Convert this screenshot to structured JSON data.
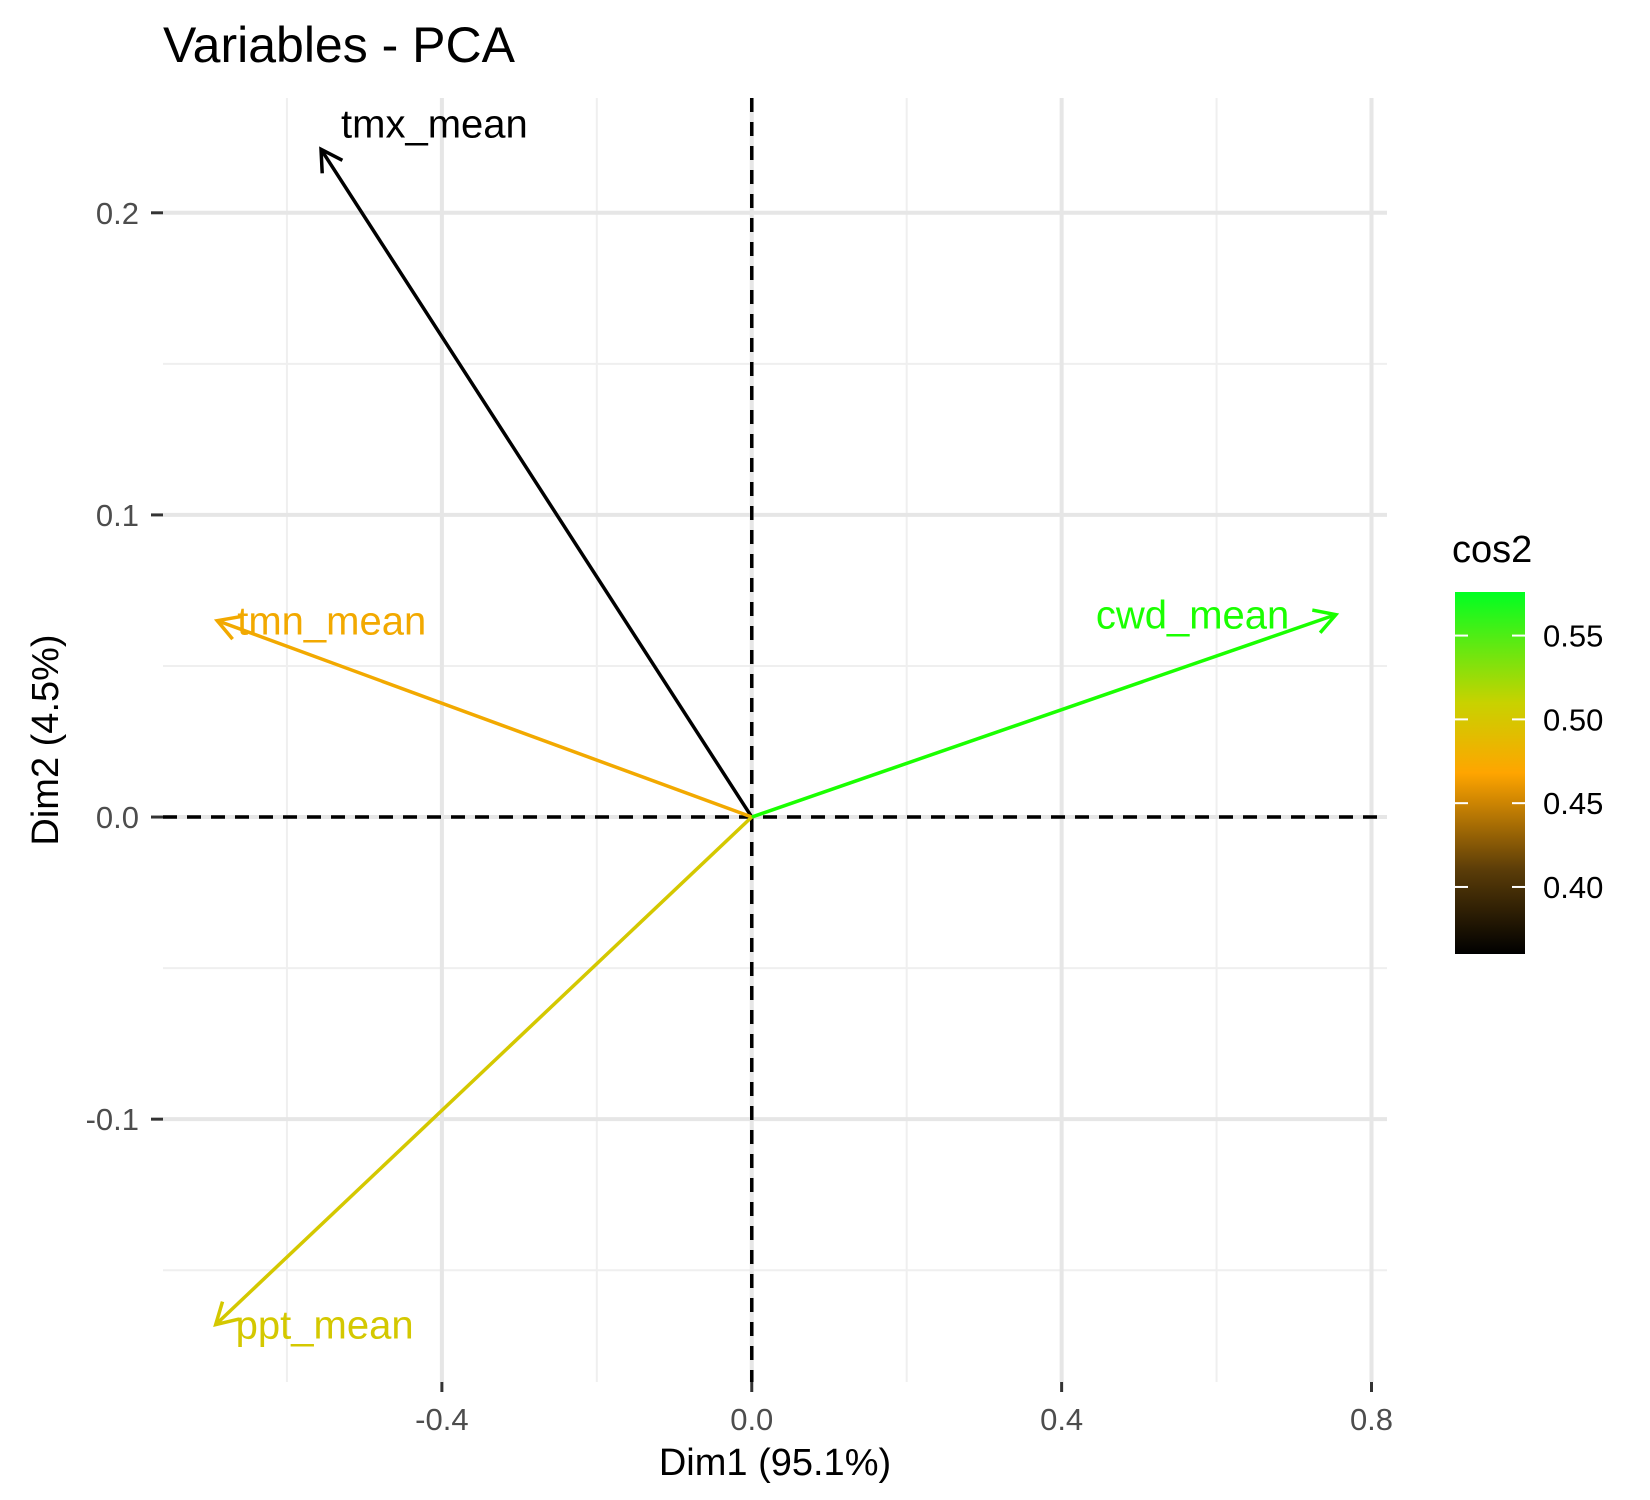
{
  "chart_data": {
    "type": "scatter",
    "subtype": "pca-variable-correlation-arrows",
    "title": "Variables - PCA",
    "xlabel": "Dim1 (95.1%)",
    "ylabel": "Dim2 (4.5%)",
    "xlim": [
      -0.76,
      0.82
    ],
    "ylim": [
      -0.187,
      0.238
    ],
    "x_ticks": [
      -0.4,
      0.0,
      0.4,
      0.8
    ],
    "x_tick_labels": [
      "-0.4",
      "0.0",
      "0.4",
      "0.8"
    ],
    "y_ticks": [
      -0.1,
      0.0,
      0.1,
      0.2
    ],
    "y_tick_labels": [
      "-0.1",
      "0.0",
      "0.1",
      "0.2"
    ],
    "x_minor": [
      -0.6,
      -0.2,
      0.2,
      0.6
    ],
    "y_minor": [
      -0.15,
      -0.05,
      0.05,
      0.15
    ],
    "grid": true,
    "reference_lines": {
      "x": 0,
      "y": 0,
      "style": "dashed"
    },
    "variables": [
      {
        "name": "tmx_mean",
        "x": -0.556,
        "y": 0.221,
        "cos2": 0.36,
        "color": "#000000"
      },
      {
        "name": "tmn_mean",
        "x": -0.69,
        "y": 0.065,
        "cos2": 0.47,
        "color": "#f2a900"
      },
      {
        "name": "cwd_mean",
        "x": 0.754,
        "y": 0.067,
        "cos2": 0.57,
        "color": "#1aff00"
      },
      {
        "name": "ppt_mean",
        "x": -0.692,
        "y": -0.168,
        "cos2": 0.51,
        "color": "#d4c800"
      }
    ],
    "legend": {
      "title": "cos2",
      "position": "right",
      "labels": [
        "0.55",
        "0.50",
        "0.45",
        "0.40"
      ],
      "values": [
        0.55,
        0.5,
        0.45,
        0.4
      ],
      "range": [
        0.36,
        0.576
      ],
      "gradient": [
        {
          "value": 0.36,
          "color": "#000000"
        },
        {
          "value": 0.41,
          "color": "#5a3c08"
        },
        {
          "value": 0.468,
          "color": "#ffa500"
        },
        {
          "value": 0.51,
          "color": "#c8d200"
        },
        {
          "value": 0.576,
          "color": "#00ff22"
        }
      ]
    }
  }
}
